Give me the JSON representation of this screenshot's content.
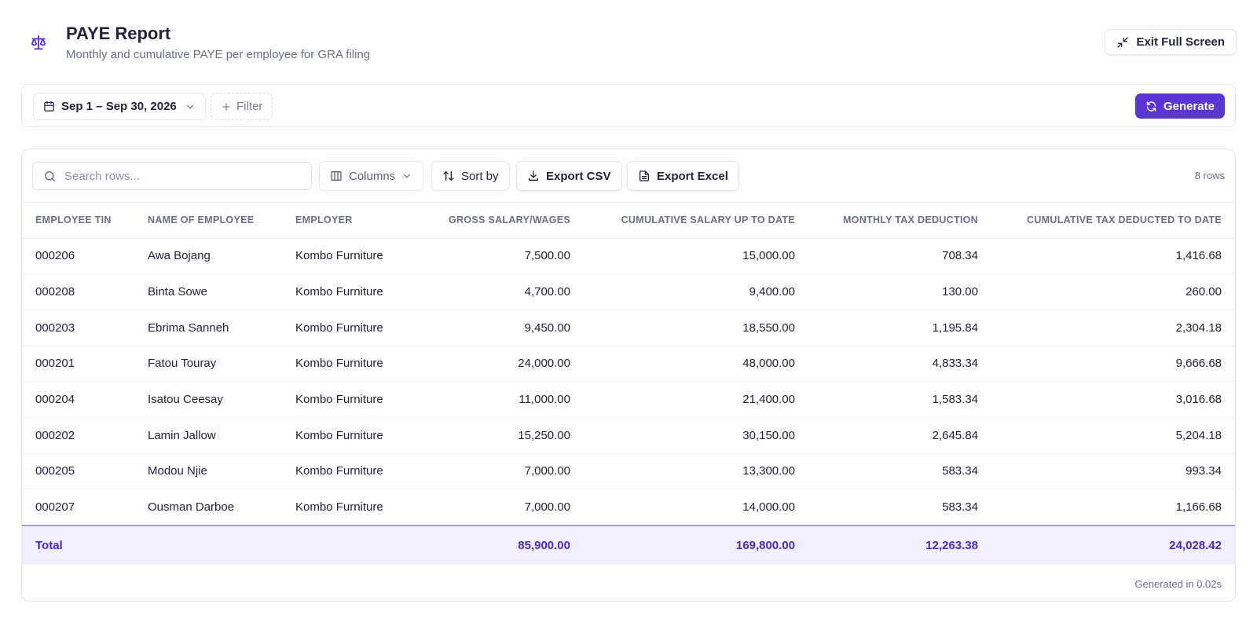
{
  "header": {
    "title": "PAYE Report",
    "subtitle": "Monthly and cumulative PAYE per employee for GRA filing",
    "exit_label": "Exit Full Screen"
  },
  "filters": {
    "date_range": "Sep 1 – Sep 30, 2026",
    "filter_label": "Filter",
    "generate_label": "Generate"
  },
  "toolbar": {
    "search_placeholder": "Search rows...",
    "columns_label": "Columns",
    "sort_label": "Sort by",
    "export_csv_label": "Export CSV",
    "export_excel_label": "Export Excel",
    "row_count": "8 rows"
  },
  "table": {
    "headers": [
      "Employee TIN",
      "Name of Employee",
      "Employer",
      "Gross Salary/Wages",
      "Cumulative Salary up to Date",
      "Monthly Tax Deduction",
      "Cumulative Tax Deducted to Date"
    ],
    "rows": [
      [
        "000206",
        "Awa Bojang",
        "Kombo Furniture",
        "7,500.00",
        "15,000.00",
        "708.34",
        "1,416.68"
      ],
      [
        "000208",
        "Binta Sowe",
        "Kombo Furniture",
        "4,700.00",
        "9,400.00",
        "130.00",
        "260.00"
      ],
      [
        "000203",
        "Ebrima Sanneh",
        "Kombo Furniture",
        "9,450.00",
        "18,550.00",
        "1,195.84",
        "2,304.18"
      ],
      [
        "000201",
        "Fatou Touray",
        "Kombo Furniture",
        "24,000.00",
        "48,000.00",
        "4,833.34",
        "9,666.68"
      ],
      [
        "000204",
        "Isatou Ceesay",
        "Kombo Furniture",
        "11,000.00",
        "21,400.00",
        "1,583.34",
        "3,016.68"
      ],
      [
        "000202",
        "Lamin Jallow",
        "Kombo Furniture",
        "15,250.00",
        "30,150.00",
        "2,645.84",
        "5,204.18"
      ],
      [
        "000205",
        "Modou Njie",
        "Kombo Furniture",
        "7,000.00",
        "13,300.00",
        "583.34",
        "993.34"
      ],
      [
        "000207",
        "Ousman Darboe",
        "Kombo Furniture",
        "7,000.00",
        "14,000.00",
        "583.34",
        "1,166.68"
      ]
    ],
    "total": {
      "label": "Total",
      "gross": "85,900.00",
      "cumulative_salary": "169,800.00",
      "monthly_tax": "12,263.38",
      "cumulative_tax": "24,028.42"
    }
  },
  "footer": {
    "generated_note": "Generated in 0.02s"
  },
  "icons": {
    "logo": "scale-icon",
    "exit": "minimize-icon",
    "calendar": "calendar-icon",
    "chevron": "chevron-down-icon",
    "plus": "plus-icon",
    "refresh": "refresh-icon",
    "search": "search-icon",
    "columns": "columns-icon",
    "sort": "sort-icon",
    "download": "download-icon",
    "file": "file-icon"
  },
  "colors": {
    "accent": "#5b35d5",
    "total_bg": "#f1eefd",
    "total_text": "#4f27c4"
  }
}
